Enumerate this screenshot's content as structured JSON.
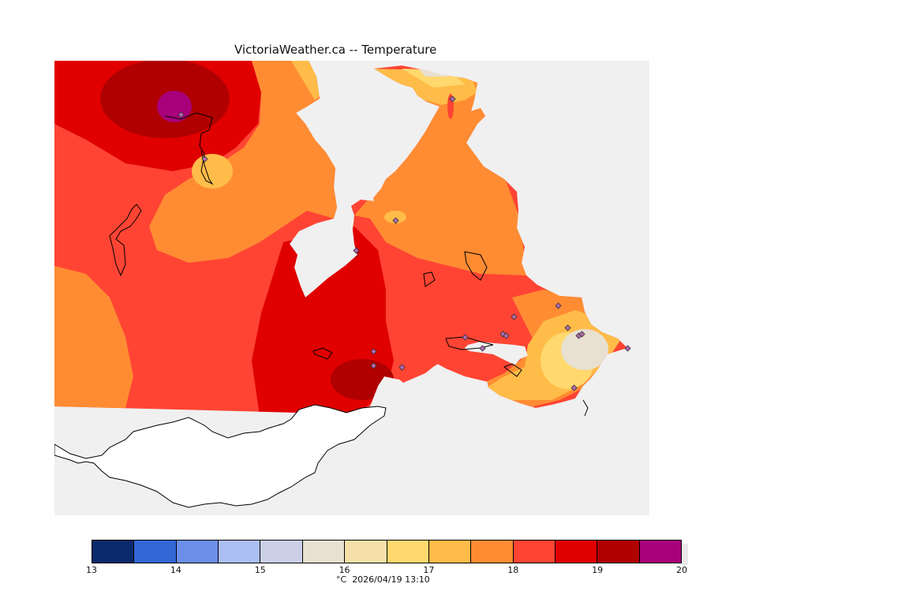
{
  "title": "VictoriaWeather.ca -- Temperature",
  "colorbar": {
    "colors": [
      "#0a2a6b",
      "#3367d6",
      "#6b8ee8",
      "#abbff5",
      "#cbd0e6",
      "#e8e0d0",
      "#f5e0a8",
      "#ffd86e",
      "#ffbc48",
      "#ff8c33",
      "#ff4433",
      "#e00000",
      "#b00000",
      "#a8007a"
    ],
    "tick_labels": [
      "13",
      "14",
      "15",
      "16",
      "17",
      "18",
      "19",
      "20"
    ]
  },
  "footer": {
    "unit": "°C",
    "timestamp": "2026/04/19 13:10"
  },
  "map": {
    "background_color": "#f0f0f0",
    "station_marker": "diamond-icon"
  }
}
